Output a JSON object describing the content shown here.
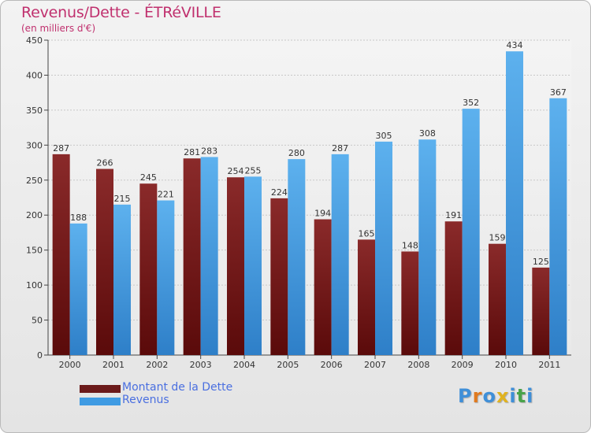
{
  "header": {
    "title": "Revenus/Dette - ÉTRéVILLE",
    "subtitle": "(en milliers d'€)"
  },
  "chart_data": {
    "type": "bar",
    "categories": [
      "2000",
      "2001",
      "2002",
      "2003",
      "2004",
      "2005",
      "2006",
      "2007",
      "2008",
      "2009",
      "2010",
      "2011"
    ],
    "series": [
      {
        "name": "Montant de la Dette",
        "values": [
          287,
          266,
          245,
          281,
          254,
          224,
          194,
          165,
          148,
          191,
          159,
          125
        ],
        "color": "#6b1a1a"
      },
      {
        "name": "Revenus",
        "values": [
          188,
          215,
          221,
          283,
          255,
          280,
          287,
          305,
          308,
          352,
          434,
          367
        ],
        "color": "#3f9be3"
      }
    ],
    "yticks": [
      0,
      50,
      100,
      150,
      200,
      250,
      300,
      350,
      400,
      450
    ],
    "ylim": [
      0,
      450
    ],
    "grid": true,
    "legend_position": "bottom-left"
  },
  "legend": {
    "items": [
      {
        "label": "Montant de la Dette",
        "color": "#6b1a1a"
      },
      {
        "label": "Revenus",
        "color": "#3f9be3"
      }
    ]
  },
  "logo": {
    "letters": [
      "P",
      "r",
      "o",
      "x",
      "i",
      "t",
      "i"
    ],
    "colors": [
      "#3f8fd8",
      "#e07a1f",
      "#3f8fd8",
      "#e0b21f",
      "#3f8fd8",
      "#49a34a",
      "#3f8fd8"
    ]
  }
}
